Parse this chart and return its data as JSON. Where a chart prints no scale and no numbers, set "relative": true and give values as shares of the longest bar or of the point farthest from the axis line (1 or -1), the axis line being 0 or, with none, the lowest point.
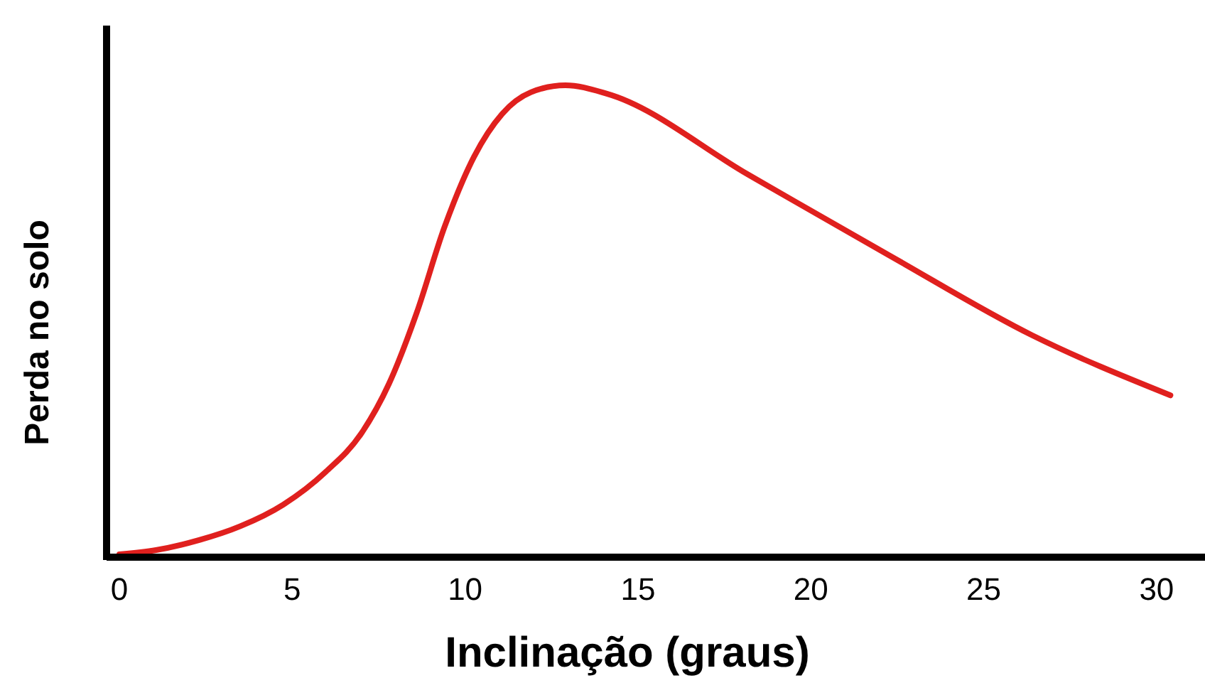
{
  "chart_data": {
    "type": "line",
    "relative": true,
    "xlabel": "Inclinação (graus)",
    "ylabel": "Perda no solo",
    "xlim": [
      -0.37,
      31.4
    ],
    "xticks": [
      0,
      5,
      10,
      15,
      20,
      25,
      30
    ],
    "x": [
      0,
      1.06,
      2.29,
      3.5,
      4.74,
      5.97,
      7.0,
      7.8,
      8.6,
      9.4,
      10.26,
      11.07,
      11.9,
      12.9,
      14.1,
      18.2,
      22.3,
      26.4,
      30.4
    ],
    "series": [
      {
        "color": "#e0201e",
        "values": [
          0,
          0.009,
          0.03,
          0.06,
          0.106,
          0.176,
          0.258,
          0.364,
          0.515,
          0.697,
          0.848,
          0.939,
          0.985,
          1,
          0.982,
          0.809,
          0.636,
          0.467,
          0.339
        ]
      }
    ]
  }
}
